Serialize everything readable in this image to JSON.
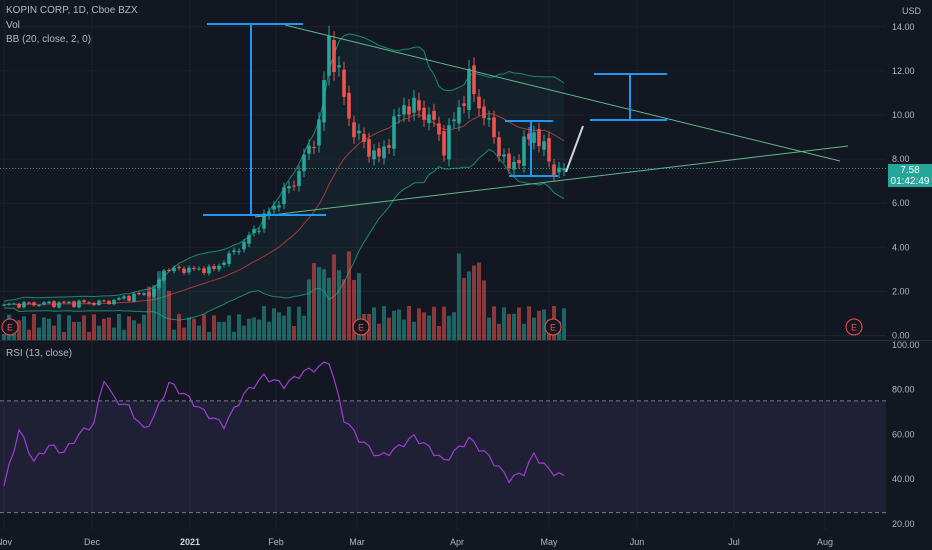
{
  "header": {
    "title": "KOPIN CORP, 1D, Cboe BZX",
    "vol_label": "Vol",
    "bb_label": "BB (20, close, 2, 0)",
    "rsi_label": "RSI (13, close)",
    "currency": "USD"
  },
  "last_price": {
    "value": "7.58",
    "countdown": "01:42:49",
    "color": "#26a69a"
  },
  "colors": {
    "up": "#26a69a",
    "down": "#ef5350",
    "bb": "#1b8a6b",
    "trend": "#5fb88a",
    "annotation": "#2196f3",
    "rsi": "#9c3fd0",
    "projection": "#d1d4dc"
  },
  "chart_data": [
    {
      "type": "candlestick",
      "title": "KOPIN CORP, 1D, Cboe BZX",
      "ylim": [
        0,
        15
      ],
      "y_ticks": [
        "14.00",
        "12.00",
        "10.00",
        "8.00",
        "6.00",
        "4.00",
        "2.00",
        "0.00"
      ],
      "x_ticks": [
        "Nov",
        "Dec",
        "2021",
        "Feb",
        "Mar",
        "Apr",
        "May",
        "Jun",
        "Jul",
        "Aug"
      ],
      "anchors": [
        {
          "i": 0,
          "c": 1.4
        },
        {
          "i": 20,
          "c": 1.5
        },
        {
          "i": 30,
          "c": 2.0
        },
        {
          "i": 32,
          "c": 3.0
        },
        {
          "i": 42,
          "c": 3.0
        },
        {
          "i": 48,
          "c": 4.2
        },
        {
          "i": 53,
          "c": 5.6
        },
        {
          "i": 58,
          "c": 7.0
        },
        {
          "i": 63,
          "c": 9.5
        },
        {
          "i": 65,
          "c": 13.5
        },
        {
          "i": 68,
          "c": 10.8
        },
        {
          "i": 70,
          "c": 9.2
        },
        {
          "i": 75,
          "c": 8.0
        },
        {
          "i": 80,
          "c": 10.5
        },
        {
          "i": 85,
          "c": 10.0
        },
        {
          "i": 88,
          "c": 8.6
        },
        {
          "i": 93,
          "c": 11.5
        },
        {
          "i": 96,
          "c": 10.0
        },
        {
          "i": 101,
          "c": 7.5
        },
        {
          "i": 106,
          "c": 9.3
        },
        {
          "i": 110,
          "c": 7.5
        },
        {
          "i": 112,
          "c": 7.58
        }
      ],
      "annotations": {
        "trendline_upper": [
          {
            "date": "2021-02-03",
            "value": 14.0
          },
          {
            "date": "2021-08-02",
            "value": 7.8
          }
        ],
        "trendline_lower": [
          {
            "date": "2021-01-28",
            "value": 5.4
          },
          {
            "date": "2021-08-02",
            "value": 8.6
          }
        ],
        "earnings_markers": [
          "E",
          "E",
          "E",
          "E"
        ]
      }
    },
    {
      "type": "bar",
      "title": "Vol",
      "series": [
        {
          "values": []
        }
      ]
    },
    {
      "type": "line",
      "title": "RSI (13, close)",
      "ylim": [
        20,
        100
      ],
      "y_ticks": [
        "100.00",
        "80.00",
        "60.00",
        "40.00",
        "20.00"
      ],
      "bands": [
        75,
        25
      ],
      "anchors": [
        {
          "i": 0,
          "v": 37
        },
        {
          "i": 3,
          "v": 62
        },
        {
          "i": 6,
          "v": 48
        },
        {
          "i": 9,
          "v": 55
        },
        {
          "i": 12,
          "v": 52
        },
        {
          "i": 15,
          "v": 60
        },
        {
          "i": 18,
          "v": 65
        },
        {
          "i": 20,
          "v": 85
        },
        {
          "i": 22,
          "v": 76
        },
        {
          "i": 25,
          "v": 72
        },
        {
          "i": 28,
          "v": 62
        },
        {
          "i": 30,
          "v": 68
        },
        {
          "i": 33,
          "v": 83
        },
        {
          "i": 36,
          "v": 78
        },
        {
          "i": 40,
          "v": 70
        },
        {
          "i": 44,
          "v": 64
        },
        {
          "i": 48,
          "v": 78
        },
        {
          "i": 52,
          "v": 86
        },
        {
          "i": 56,
          "v": 82
        },
        {
          "i": 60,
          "v": 88
        },
        {
          "i": 63,
          "v": 90
        },
        {
          "i": 65,
          "v": 93
        },
        {
          "i": 68,
          "v": 67
        },
        {
          "i": 71,
          "v": 58
        },
        {
          "i": 75,
          "v": 50
        },
        {
          "i": 78,
          "v": 53
        },
        {
          "i": 82,
          "v": 59
        },
        {
          "i": 85,
          "v": 54
        },
        {
          "i": 88,
          "v": 48
        },
        {
          "i": 93,
          "v": 58
        },
        {
          "i": 97,
          "v": 50
        },
        {
          "i": 101,
          "v": 40
        },
        {
          "i": 104,
          "v": 43
        },
        {
          "i": 106,
          "v": 51
        },
        {
          "i": 109,
          "v": 44
        },
        {
          "i": 112,
          "v": 41
        }
      ]
    }
  ]
}
